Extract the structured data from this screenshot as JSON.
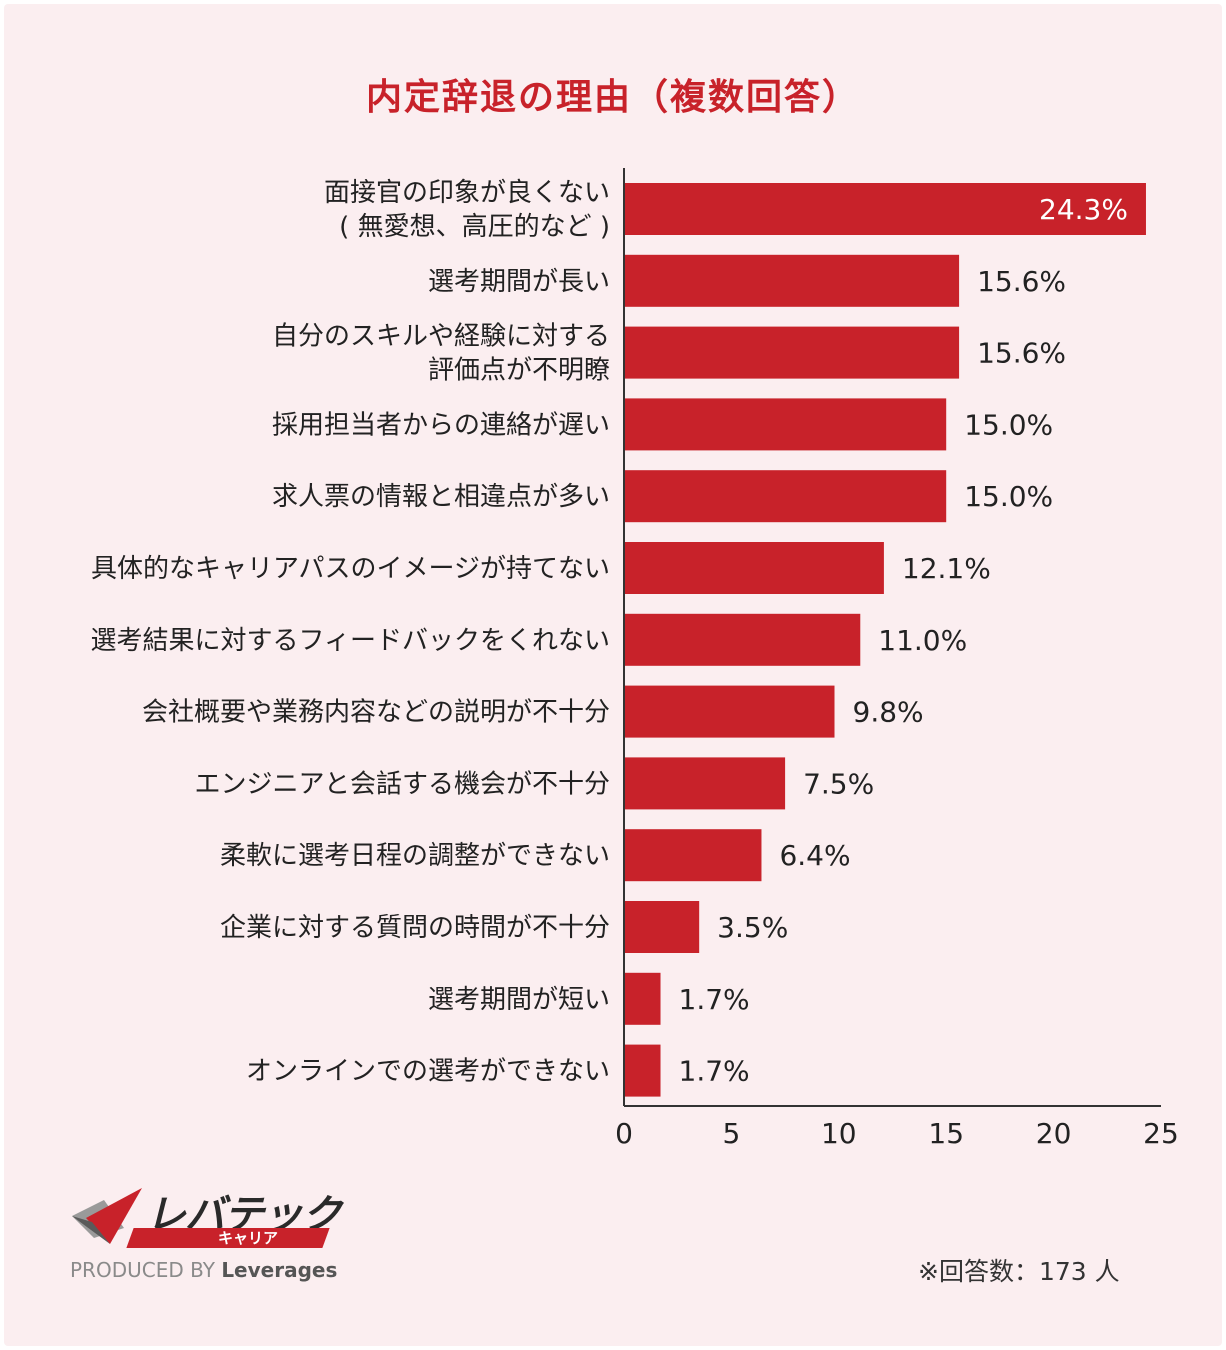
{
  "chart_data": {
    "type": "bar",
    "orientation": "horizontal",
    "title": "内定辞退の理由（複数回答）",
    "categories": [
      [
        "面接官の印象が良くない",
        "( 無愛想、高圧的など )"
      ],
      [
        "選考期間が長い"
      ],
      [
        "自分のスキルや経験に対する",
        "評価点が不明瞭"
      ],
      [
        "採用担当者からの連絡が遅い"
      ],
      [
        "求人票の情報と相違点が多い"
      ],
      [
        "具体的なキャリアパスのイメージが持てない"
      ],
      [
        "選考結果に対するフィードバックをくれない"
      ],
      [
        "会社概要や業務内容などの説明が不十分"
      ],
      [
        "エンジニアと会話する機会が不十分"
      ],
      [
        "柔軟に選考日程の調整ができない"
      ],
      [
        "企業に対する質問の時間が不十分"
      ],
      [
        "選考期間が短い"
      ],
      [
        "オンラインでの選考ができない"
      ]
    ],
    "values": [
      24.3,
      15.6,
      15.6,
      15.0,
      15.0,
      12.1,
      11.0,
      9.8,
      7.5,
      6.4,
      3.5,
      1.7,
      1.7
    ],
    "value_labels": [
      "24.3%",
      "15.6%",
      "15.6%",
      "15.0%",
      "15.0%",
      "12.1%",
      "11.0%",
      "9.8%",
      "7.5%",
      "6.4%",
      "3.5%",
      "1.7%",
      "1.7%"
    ],
    "xlim": [
      0,
      25
    ],
    "x_ticks": [
      0,
      5,
      10,
      15,
      20,
      25
    ],
    "bar_color": "#c8222a",
    "xlabel": "",
    "ylabel": ""
  },
  "footnote": "※回答数：173 人",
  "logo": {
    "brand": "レバテック",
    "tag": "キャリア",
    "produced_by": "PRODUCED BY",
    "company": "Leverages"
  }
}
